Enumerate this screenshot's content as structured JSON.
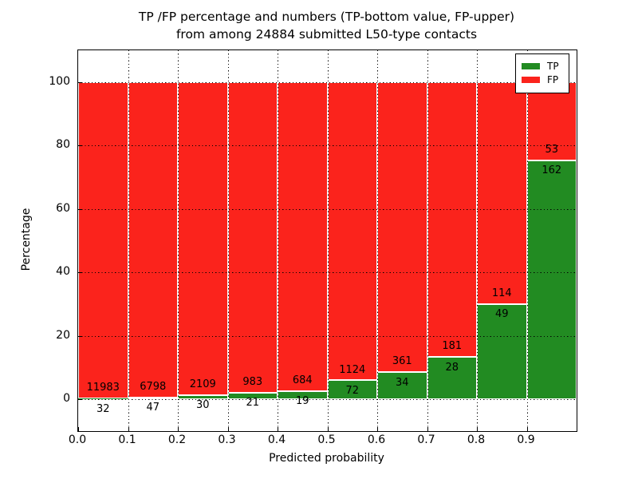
{
  "title": {
    "line1": "TP /FP percentage and numbers (TP-bottom value, FP-upper)",
    "line2": "from among 24884 submitted L50-type contacts"
  },
  "axes": {
    "xlabel": "Predicted probability",
    "ylabel": "Percentage",
    "x_ticks": [
      "0.0",
      "0.1",
      "0.2",
      "0.3",
      "0.4",
      "0.5",
      "0.6",
      "0.7",
      "0.8",
      "0.9"
    ],
    "y_ticks": [
      "0",
      "20",
      "40",
      "60",
      "80",
      "100"
    ]
  },
  "legend": {
    "items": [
      {
        "label": "TP",
        "color": "#228b22"
      },
      {
        "label": "FP",
        "color": "#fb231c"
      }
    ]
  },
  "colors": {
    "tp_green": "#228b22",
    "fp_red": "#fb231c",
    "bar_edge": "#ffffff",
    "grid": "#000000"
  },
  "chart_data": {
    "type": "bar",
    "stacked": true,
    "normalized_to_percent": true,
    "title": "TP /FP percentage and numbers (TP-bottom value, FP-upper) from among 24884 submitted L50-type contacts",
    "xlabel": "Predicted probability",
    "ylabel": "Percentage",
    "total_contacts": 24884,
    "categories": [
      "0.0-0.1",
      "0.1-0.2",
      "0.2-0.3",
      "0.3-0.4",
      "0.4-0.5",
      "0.5-0.6",
      "0.6-0.7",
      "0.7-0.8",
      "0.8-0.9",
      "0.9-1.0"
    ],
    "series": [
      {
        "name": "TP",
        "color": "#228b22",
        "counts": [
          32,
          47,
          30,
          21,
          19,
          72,
          34,
          28,
          49,
          162
        ]
      },
      {
        "name": "FP",
        "color": "#fb231c",
        "counts": [
          11983,
          6798,
          2109,
          983,
          684,
          1124,
          361,
          181,
          114,
          53
        ]
      }
    ],
    "bar_label_note": "TP count shown below segment boundary, FP count above it",
    "xlim": [
      0.0,
      1.0
    ],
    "ylim": [
      -10,
      110
    ],
    "y_gridline_values": [
      0,
      20,
      40,
      60,
      80,
      100
    ],
    "grid": true,
    "grid_linestyle": "dotted",
    "legend_position": "upper right"
  }
}
